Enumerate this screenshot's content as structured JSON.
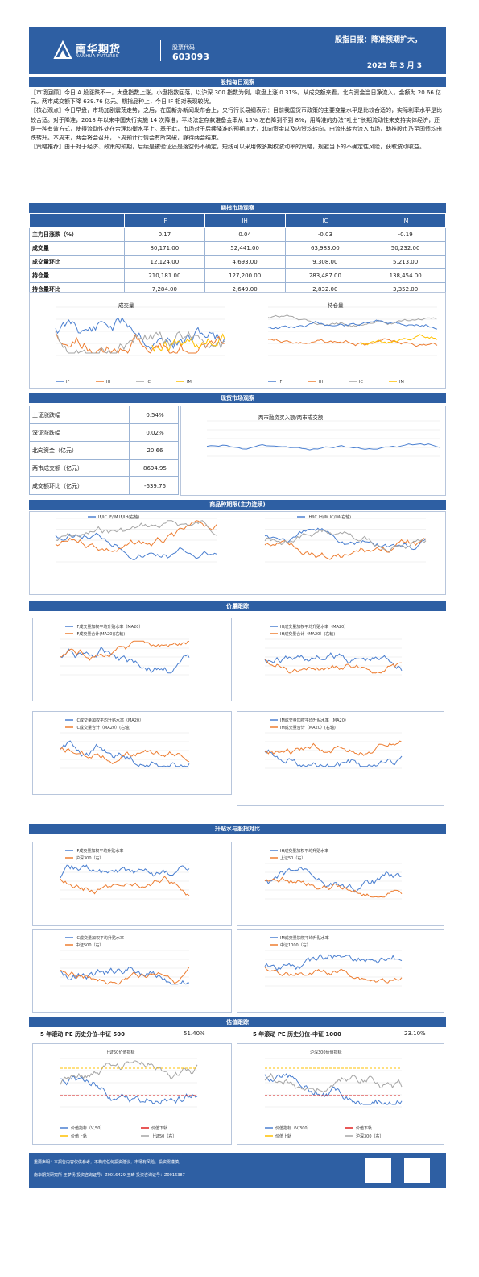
{
  "header": {
    "logo_cn": "南华期货",
    "logo_en": "NANHUA FUTURES",
    "stock_label": "股票代码",
    "stock_code": "603093",
    "title": "股指日报：降准预期扩大，",
    "date": "2023 年 3 月 3"
  },
  "sections": {
    "daily": "股指每日观察",
    "futures": "期指市场观察",
    "spot": "现货市场观察",
    "cross": "商品种期限(主力连续)",
    "price": "价量跟踪",
    "premium": "升贴水与股指对比",
    "valuation": "估值跟踪"
  },
  "daily_text": [
    "【市场回顾】今日 A 股涨跌不一，大盘指数上涨，小盘指数回落，以沪深 300 指数为例，收盘上涨 0.31%。从成交额来看，北向资金当日净流入，金额为 20.66 亿元。两市成交额下降 639.76 亿元。期指品种上，今日 IF 相对表现较优。",
    "【核心观点】今日早盘，市场加剧震荡走势，之后，在国新办新闻发布会上，央行行长易纲表示：目前我国货币政策的主要变量水平是比较合适的，实际利率水平是比较合适。对于降准，2018 年以来中国央行实施 14 次降准，平均法定存款准备金率从 15% 左右降到不到 8%，用降准的办法“吐出”长期流动性来支持实体经济，还是一种有效方式，使得流动性处在合理均衡水平上。基于此，市场对于后续降准的预期加大，北向资金以及内资均转向，由流出转为流入市场，助推股市乃至国债均由跌转升。本周末，两会将会召开，下周预计行情会有所突破，静待两会结束。",
    "【策略推荐】由于对于经济、政策的预期，后续是被验证还是落空仍不确定，短线可以采用做多期权波动率的策略，规避当下的不确定性风险，获取波动收益。"
  ],
  "futures_table": {
    "headers": [
      "",
      "IF",
      "IH",
      "IC",
      "IM"
    ],
    "rows": [
      {
        "label": "主力日涨跌（%）",
        "values": [
          "0.17",
          "0.04",
          "-0.03",
          "-0.19"
        ]
      },
      {
        "label": "成交量",
        "values": [
          "80,171.00",
          "52,441.00",
          "63,983.00",
          "50,232.00"
        ]
      },
      {
        "label": "成交量环比",
        "values": [
          "12,124.00",
          "4,693.00",
          "9,308.00",
          "5,213.00"
        ]
      },
      {
        "label": "持仓量",
        "values": [
          "210,181.00",
          "127,200.00",
          "283,487.00",
          "138,454.00"
        ]
      },
      {
        "label": "持仓量环比",
        "values": [
          "7,284.00",
          "2,649.00",
          "2,832.00",
          "3,352.00"
        ]
      }
    ]
  },
  "charts": {
    "volume_title": "成交量",
    "oi_title": "持仓量",
    "legend_futures": [
      "IF",
      "IH",
      "IC",
      "IM"
    ],
    "margin_title": "两市融资买入额/两市成交额",
    "cross1_legend": [
      "IF/IC",
      "IF/IM",
      "IF/IH(右轴)"
    ],
    "cross2_legend": [
      "IH/IC",
      "IH/IM",
      "IC/IM(右轴)"
    ],
    "pv_if_legend": [
      "IF成交量加权平均升贴水率（MA20）",
      "IF成交量合计(MA20)(右轴)"
    ],
    "pv_ih_legend": [
      "IH成交量加权平均升贴水率（MA20）",
      "IH成交量合计（MA20）(右轴)"
    ],
    "pv_ic_legend": [
      "IC成交量加权平均升贴水率（MA20）",
      "IC成交量合计（MA20）(右轴)"
    ],
    "pv_im_legend": [
      "IM成交量加权平均升贴水率（MA20）",
      "IM成交量合计（MA20）(右轴)"
    ],
    "prem_if_legend": [
      "IF成交量加权平均升贴水率",
      "沪深300（右）"
    ],
    "prem_ih_legend": [
      "IH成交量加权平均升贴水率",
      "上证50（右）"
    ],
    "prem_ic_legend": [
      "IC成交量加权平均升贴水率",
      "中证500（右）"
    ],
    "prem_im_legend": [
      "IM成交量加权平均升贴水率",
      "中证1000（右）"
    ],
    "sz50_title": "上证50价值指标",
    "hs300_title": "沪深300价值指标",
    "sz50_legend": [
      "价值指标（V,50）",
      "价值下轨",
      "价值上轨",
      "上证50（右）"
    ],
    "hs300_legend": [
      "价值指标（V,300）",
      "价值下轨",
      "价值上轨",
      "沪深300（右）"
    ]
  },
  "spot_table": [
    {
      "label": "上证涨跌幅",
      "value": "0.54%"
    },
    {
      "label": "深证涨跌幅",
      "value": "0.02%"
    },
    {
      "label": "北向资金（亿元）",
      "value": "20.66"
    },
    {
      "label": "两市成交额（亿元）",
      "value": "8694.95"
    },
    {
      "label": "成交额环比（亿元）",
      "value": "-639.76"
    }
  ],
  "valuation_row": {
    "label1": "5 年滚动 PE 历史分位-中证 500",
    "value1": "51.40%",
    "label2": "5 年滚动 PE 历史分位-中证 1000",
    "value2": "23.10%"
  },
  "footer": {
    "line1": "重要声明：本报告内容仅供参考，不构成任何投资建议，市场有风险，投资需谨慎。",
    "line2": "南华期货研究所  王梦扬  投资咨询证号：Z0016429    王琦  投资咨询证号：Z0016387"
  },
  "colors": {
    "primary": "#2e5fa3",
    "series_blue": "#4a7fd0",
    "series_orange": "#ed7d31",
    "series_gray": "#a5a5a5",
    "series_yellow": "#ffc000",
    "red_dash": "#e02020"
  }
}
